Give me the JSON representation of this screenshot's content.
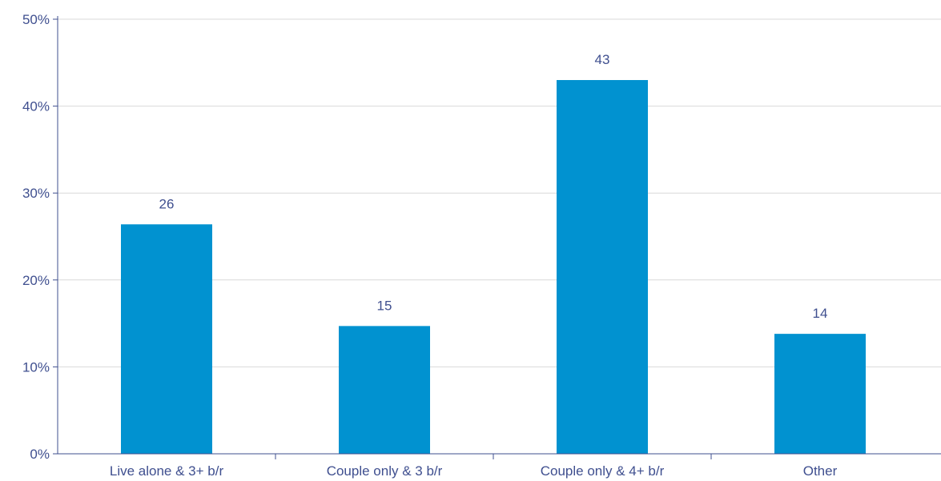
{
  "chart_data": {
    "type": "bar",
    "categories": [
      "Live alone & 3+ b/r",
      "Couple only & 3 b/r",
      "Couple only & 4+ b/r",
      "Other"
    ],
    "values": [
      26.4,
      14.7,
      43.0,
      13.8
    ],
    "data_labels": [
      "26",
      "15",
      "43",
      "14"
    ],
    "yticks": [
      "0%",
      "10%",
      "20%",
      "30%",
      "40%",
      "50%"
    ],
    "ylim": [
      0,
      50
    ],
    "ytick_values": [
      0,
      10,
      20,
      30,
      40,
      50
    ],
    "grid": true,
    "legend": "none",
    "title": "",
    "xlabel": "",
    "ylabel": "",
    "colors": {
      "bar": "#0192d0",
      "text": "#3f4f8f",
      "axis": "#3f4f8f",
      "grid": "#d9d9d9"
    }
  }
}
